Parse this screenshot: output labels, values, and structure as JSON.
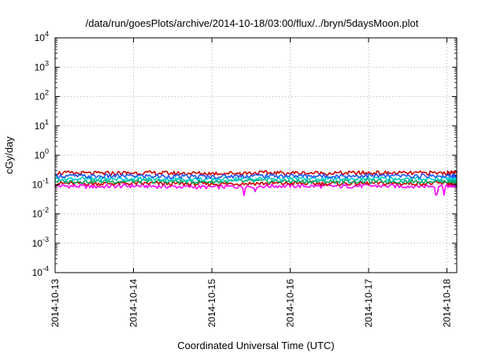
{
  "chart_data": {
    "type": "line",
    "title": "/data/run/goesPlots/archive/2014-10-18/03:00/flux/../bryn/5daysMoon.plot",
    "xlabel": "Coordinated Universal Time (UTC)",
    "ylabel": "cGy/day",
    "yscale": "log",
    "ylim": [
      0.0001,
      10000
    ],
    "y_ticks": [
      {
        "base": "10",
        "exp": "-4",
        "value": 0.0001
      },
      {
        "base": "10",
        "exp": "-3",
        "value": 0.001
      },
      {
        "base": "10",
        "exp": "-2",
        "value": 0.01
      },
      {
        "base": "10",
        "exp": "-1",
        "value": 0.1
      },
      {
        "base": "10",
        "exp": "0",
        "value": 1
      },
      {
        "base": "10",
        "exp": "1",
        "value": 10
      },
      {
        "base": "10",
        "exp": "2",
        "value": 100
      },
      {
        "base": "10",
        "exp": "3",
        "value": 1000
      },
      {
        "base": "10",
        "exp": "4",
        "value": 10000
      }
    ],
    "xlim": [
      "2014-10-13",
      "2014-10-18T03:00"
    ],
    "x_ticks": [
      "2014-10-13",
      "2014-10-14",
      "2014-10-15",
      "2014-10-16",
      "2014-10-17",
      "2014-10-18"
    ],
    "grid": true,
    "legend": "none",
    "series": [
      {
        "color": "#ff00ff",
        "x": [
          "2014-10-13",
          "2014-10-13T12:00",
          "2014-10-14",
          "2014-10-14T12:00",
          "2014-10-15",
          "2014-10-15T12:00",
          "2014-10-16",
          "2014-10-16T12:00",
          "2014-10-17",
          "2014-10-17T12:00",
          "2014-10-18",
          "2014-10-18T03:00"
        ],
        "y": [
          0.09,
          0.085,
          0.09,
          0.085,
          0.082,
          0.088,
          0.09,
          0.087,
          0.09,
          0.088,
          0.09,
          0.088
        ]
      },
      {
        "color": "#cc0000",
        "x": [
          "2014-10-13",
          "2014-10-13T12:00",
          "2014-10-14",
          "2014-10-14T12:00",
          "2014-10-15",
          "2014-10-15T12:00",
          "2014-10-16",
          "2014-10-16T12:00",
          "2014-10-17",
          "2014-10-17T12:00",
          "2014-10-18",
          "2014-10-18T03:00"
        ],
        "y": [
          0.11,
          0.108,
          0.11,
          0.107,
          0.105,
          0.11,
          0.11,
          0.108,
          0.11,
          0.109,
          0.11,
          0.11
        ]
      },
      {
        "color": "#00aa66",
        "x": [
          "2014-10-13",
          "2014-10-13T12:00",
          "2014-10-14",
          "2014-10-14T12:00",
          "2014-10-15",
          "2014-10-15T12:00",
          "2014-10-16",
          "2014-10-16T12:00",
          "2014-10-17",
          "2014-10-17T12:00",
          "2014-10-18",
          "2014-10-18T03:00"
        ],
        "y": [
          0.13,
          0.128,
          0.13,
          0.127,
          0.125,
          0.13,
          0.13,
          0.128,
          0.13,
          0.129,
          0.13,
          0.13
        ]
      },
      {
        "color": "#00cccc",
        "x": [
          "2014-10-13",
          "2014-10-13T12:00",
          "2014-10-14",
          "2014-10-14T12:00",
          "2014-10-15",
          "2014-10-15T12:00",
          "2014-10-16",
          "2014-10-16T12:00",
          "2014-10-17",
          "2014-10-17T12:00",
          "2014-10-18",
          "2014-10-18T03:00"
        ],
        "y": [
          0.16,
          0.155,
          0.16,
          0.154,
          0.15,
          0.158,
          0.16,
          0.156,
          0.16,
          0.157,
          0.16,
          0.16
        ]
      },
      {
        "color": "#cc0000",
        "x": [
          "2014-10-13",
          "2014-10-13T12:00",
          "2014-10-14",
          "2014-10-14T12:00",
          "2014-10-15",
          "2014-10-15T12:00",
          "2014-10-16",
          "2014-10-16T12:00",
          "2014-10-17",
          "2014-10-17T12:00",
          "2014-10-18",
          "2014-10-18T03:00"
        ],
        "y": [
          0.25,
          0.24,
          0.25,
          0.245,
          0.24,
          0.25,
          0.25,
          0.245,
          0.25,
          0.245,
          0.25,
          0.25
        ]
      },
      {
        "color": "#2255ff",
        "x": [
          "2014-10-13",
          "2014-10-13T12:00",
          "2014-10-14",
          "2014-10-14T12:00",
          "2014-10-15",
          "2014-10-15T12:00",
          "2014-10-16",
          "2014-10-16T12:00",
          "2014-10-17",
          "2014-10-17T12:00",
          "2014-10-18",
          "2014-10-18T03:00"
        ],
        "y": [
          0.2,
          0.19,
          0.2,
          0.19,
          0.185,
          0.2,
          0.2,
          0.195,
          0.2,
          0.195,
          0.2,
          0.2
        ]
      }
    ]
  }
}
